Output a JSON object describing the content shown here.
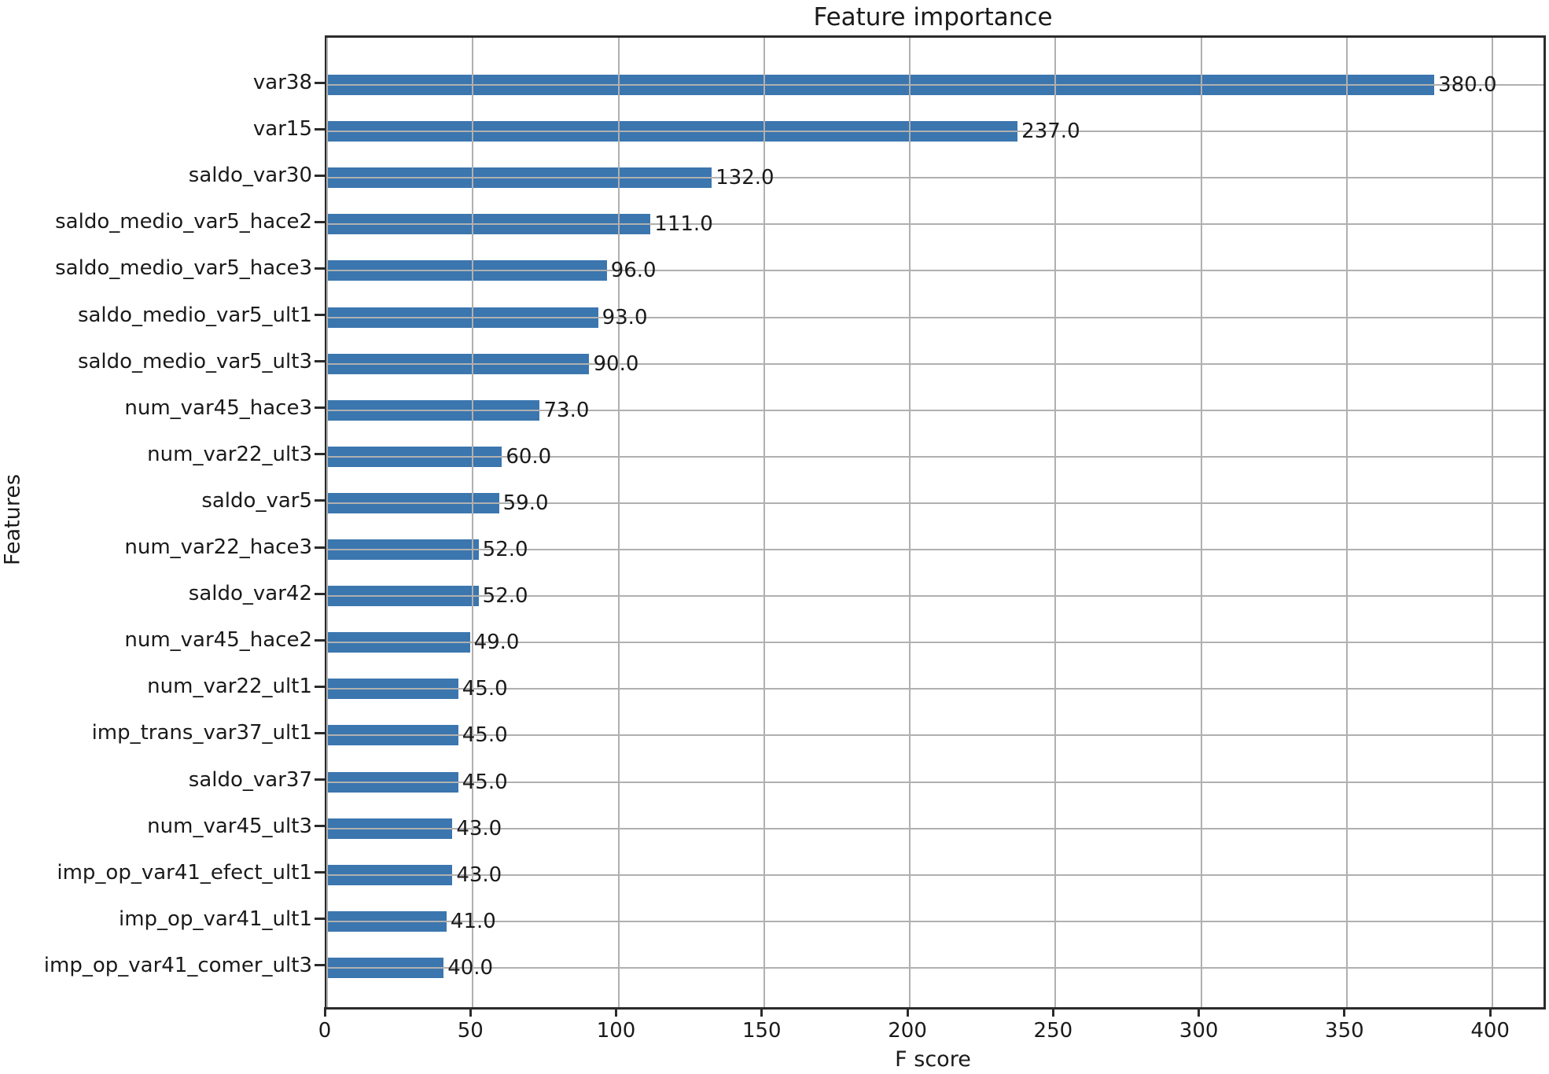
{
  "chart_data": {
    "type": "bar",
    "orientation": "horizontal",
    "title": "Feature importance",
    "xlabel": "F score",
    "ylabel": "Features",
    "categories": [
      "var38",
      "var15",
      "saldo_var30",
      "saldo_medio_var5_hace2",
      "saldo_medio_var5_hace3",
      "saldo_medio_var5_ult1",
      "saldo_medio_var5_ult3",
      "num_var45_hace3",
      "num_var22_ult3",
      "saldo_var5",
      "num_var22_hace3",
      "saldo_var42",
      "num_var45_hace2",
      "num_var22_ult1",
      "imp_trans_var37_ult1",
      "saldo_var37",
      "num_var45_ult3",
      "imp_op_var41_efect_ult1",
      "imp_op_var41_ult1",
      "imp_op_var41_comer_ult3"
    ],
    "values": [
      380,
      237,
      132,
      111,
      96,
      93,
      90,
      73,
      60,
      59,
      52,
      52,
      49,
      45,
      45,
      45,
      43,
      43,
      41,
      40
    ],
    "value_labels": [
      "380.0",
      "237.0",
      "132.0",
      "111.0",
      "96.0",
      "93.0",
      "90.0",
      "73.0",
      "60.0",
      "59.0",
      "52.0",
      "52.0",
      "49.0",
      "45.0",
      "45.0",
      "45.0",
      "43.0",
      "43.0",
      "41.0",
      "40.0"
    ],
    "x_ticks": [
      "0",
      "50",
      "100",
      "150",
      "200",
      "250",
      "300",
      "350",
      "400"
    ],
    "x_tick_values": [
      0,
      50,
      100,
      150,
      200,
      250,
      300,
      350,
      400
    ],
    "xlim": [
      0,
      417.5
    ],
    "grid": true,
    "legend": "none",
    "colors": {
      "bar": "#3b76af",
      "grid": "#b0b0b0",
      "spine": "#2b2b2b",
      "text": "#1a1a1a",
      "background": "#ffffff"
    }
  }
}
